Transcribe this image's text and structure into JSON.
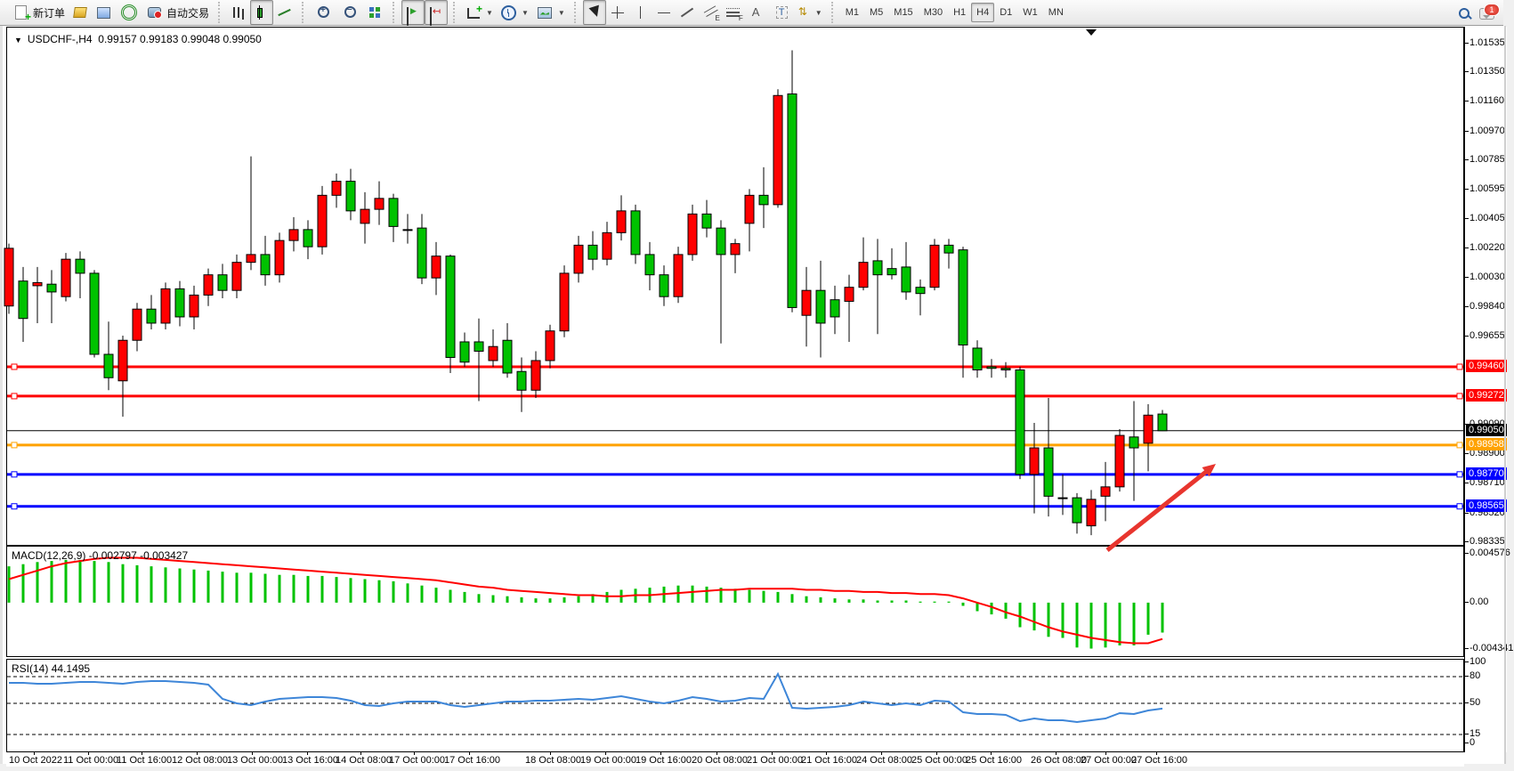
{
  "toolbar": {
    "groups": [
      {
        "name": "trade",
        "buttons": [
          {
            "name": "new-order-button",
            "icon": "doc",
            "label": "新订单",
            "active": false
          },
          {
            "name": "market-watch-button",
            "icon": "cube",
            "label": "",
            "active": false
          },
          {
            "name": "data-window-button",
            "icon": "win",
            "label": "",
            "active": false
          },
          {
            "name": "navigator-button",
            "icon": "sig",
            "label": "",
            "active": false
          },
          {
            "name": "auto-trading-button",
            "icon": "auto",
            "label": "自动交易",
            "active": false
          }
        ]
      },
      {
        "name": "chart-type",
        "buttons": [
          {
            "name": "bar-chart-button",
            "icon": "bars",
            "label": "",
            "active": false
          },
          {
            "name": "candlestick-button",
            "icon": "candle",
            "label": "",
            "active": true
          },
          {
            "name": "line-chart-button",
            "icon": "line",
            "label": "",
            "active": false
          }
        ]
      },
      {
        "name": "zoom",
        "buttons": [
          {
            "name": "zoom-in-button",
            "icon": "zoomin",
            "label": "",
            "active": false
          },
          {
            "name": "zoom-out-button",
            "icon": "zoomout",
            "label": "",
            "active": false
          },
          {
            "name": "tile-windows-button",
            "icon": "tile",
            "label": "",
            "active": false
          }
        ]
      },
      {
        "name": "scroll",
        "buttons": [
          {
            "name": "auto-scroll-button",
            "icon": "ascroll",
            "label": "",
            "active": true
          },
          {
            "name": "chart-shift-button",
            "icon": "ashift",
            "label": "",
            "active": true
          }
        ]
      },
      {
        "name": "objects-main",
        "buttons": [
          {
            "name": "indicators-button",
            "icon": "ind",
            "label": "",
            "active": false,
            "dropdown": true
          },
          {
            "name": "periods-button",
            "icon": "clock",
            "label": "",
            "active": false,
            "dropdown": true
          },
          {
            "name": "templates-button",
            "icon": "tmpl",
            "label": "",
            "active": false,
            "dropdown": true
          }
        ]
      },
      {
        "name": "drawing",
        "buttons": [
          {
            "name": "cursor-button",
            "icon": "cursor",
            "label": "",
            "active": true
          },
          {
            "name": "crosshair-button",
            "icon": "cross",
            "label": "",
            "active": false
          },
          {
            "name": "vertical-line-button",
            "icon": "vline",
            "label": "",
            "active": false
          },
          {
            "name": "horizontal-line-button",
            "icon": "hline",
            "label": "",
            "active": false
          },
          {
            "name": "trendline-button",
            "icon": "trend",
            "label": "",
            "active": false
          },
          {
            "name": "channel-button",
            "icon": "chan",
            "label": "",
            "active": false
          },
          {
            "name": "fibonacci-button",
            "icon": "fibo",
            "label": "",
            "active": false
          },
          {
            "name": "text-button",
            "icon": "text",
            "label": "",
            "active": false
          },
          {
            "name": "text-label-button",
            "icon": "label",
            "label": "",
            "active": false
          },
          {
            "name": "arrows-button",
            "icon": "arrows",
            "label": "",
            "active": false,
            "dropdown": true
          }
        ]
      }
    ],
    "timeframes": [
      {
        "label": "M1",
        "active": false
      },
      {
        "label": "M5",
        "active": false
      },
      {
        "label": "M15",
        "active": false
      },
      {
        "label": "M30",
        "active": false
      },
      {
        "label": "H1",
        "active": false
      },
      {
        "label": "H4",
        "active": true
      },
      {
        "label": "D1",
        "active": false
      },
      {
        "label": "W1",
        "active": false
      },
      {
        "label": "MN",
        "active": false
      }
    ],
    "notification_badge": "1"
  },
  "chart_header": {
    "symbol_period": "USDCHF-,H4",
    "open": "0.99157",
    "high": "0.99183",
    "low": "0.99048",
    "close": "0.99050",
    "collapse_icon": "▼"
  },
  "indicator_labels": {
    "macd_name": "MACD(12,26,9)",
    "macd_value": "-0.002797",
    "macd_signal": "-0.003427",
    "rsi_name": "RSI(14)",
    "rsi_value": "44.1495"
  },
  "colors": {
    "bull": "#ff0000",
    "bear": "#00c200",
    "candle_border": "#000000",
    "macd_hist": "#00c200",
    "macd_signal": "#ff0000",
    "rsi_line": "#3e86d8",
    "level_red": "#ff0000",
    "level_blue": "#0000ff",
    "level_orange": "#ffa200",
    "current_price_line": "#000000",
    "arrow": "#e8352e"
  },
  "chart_data": {
    "type": "candlestick",
    "symbol": "USDCHF-",
    "timeframe": "H4",
    "price_pane": {
      "axis_ticks": [
        "1.01535",
        "1.01350",
        "1.01160",
        "1.00970",
        "1.00785",
        "1.00595",
        "1.00405",
        "1.00220",
        "1.00030",
        "0.99840",
        "0.99655",
        "0.99090",
        "0.98900",
        "0.98710",
        "0.98520",
        "0.98335"
      ],
      "ylim": [
        0.98335,
        1.01535
      ],
      "grid": false
    },
    "candles": [
      [
        0.9985,
        1.0025,
        0.998,
        1.0022
      ],
      [
        1.0001,
        1.001,
        0.9962,
        0.9977
      ],
      [
        0.9998,
        1.001,
        0.9974,
        1.0
      ],
      [
        0.9999,
        1.0008,
        0.9974,
        0.9994
      ],
      [
        0.9991,
        1.0019,
        0.9988,
        1.0015
      ],
      [
        1.0015,
        1.002,
        0.999,
        1.0006
      ],
      [
        1.0006,
        1.0008,
        0.9952,
        0.9954
      ],
      [
        0.9954,
        0.9975,
        0.9931,
        0.9939
      ],
      [
        0.9937,
        0.9966,
        0.9914,
        0.9963
      ],
      [
        0.9963,
        0.9987,
        0.9956,
        0.9983
      ],
      [
        0.9983,
        0.9992,
        0.997,
        0.9974
      ],
      [
        0.9974,
        1.0,
        0.997,
        0.9996
      ],
      [
        0.9996,
        1.0001,
        0.9972,
        0.9978
      ],
      [
        0.9978,
        0.9998,
        0.997,
        0.9992
      ],
      [
        0.9992,
        1.0009,
        0.9985,
        1.0005
      ],
      [
        1.0005,
        1.0012,
        0.999,
        0.9995
      ],
      [
        0.9995,
        1.0018,
        0.999,
        1.0013
      ],
      [
        1.0013,
        1.0081,
        1.0008,
        1.0018
      ],
      [
        1.0018,
        1.003,
        0.9998,
        1.0005
      ],
      [
        1.0005,
        1.0032,
        1.0,
        1.0027
      ],
      [
        1.0027,
        1.0042,
        1.002,
        1.0034
      ],
      [
        1.0034,
        1.004,
        1.0015,
        1.0023
      ],
      [
        1.0023,
        1.0062,
        1.0018,
        1.0056
      ],
      [
        1.0056,
        1.007,
        1.0048,
        1.0065
      ],
      [
        1.0065,
        1.0073,
        1.004,
        1.0046
      ],
      [
        1.0038,
        1.0058,
        1.0025,
        1.0047
      ],
      [
        1.0047,
        1.0065,
        1.0037,
        1.0054
      ],
      [
        1.0054,
        1.0057,
        1.0026,
        1.0036
      ],
      [
        1.0034,
        1.0044,
        1.0025,
        1.0034
      ],
      [
        1.0035,
        1.0044,
        0.9999,
        1.0003
      ],
      [
        1.0003,
        1.0026,
        0.9992,
        1.0017
      ],
      [
        1.0017,
        1.0018,
        0.9942,
        0.9952
      ],
      [
        0.9962,
        0.9968,
        0.9946,
        0.9949
      ],
      [
        0.9962,
        0.9977,
        0.9924,
        0.9956
      ],
      [
        0.995,
        0.997,
        0.9946,
        0.9959
      ],
      [
        0.9963,
        0.9974,
        0.9939,
        0.9942
      ],
      [
        0.9943,
        0.9952,
        0.9917,
        0.9931
      ],
      [
        0.9931,
        0.9956,
        0.9926,
        0.995
      ],
      [
        0.995,
        0.9973,
        0.9945,
        0.9969
      ],
      [
        0.9969,
        1.0011,
        0.9965,
        1.0006
      ],
      [
        1.0006,
        1.003,
        1.0,
        1.0024
      ],
      [
        1.0024,
        1.0033,
        1.0008,
        1.0015
      ],
      [
        1.0015,
        1.0039,
        1.0011,
        1.0032
      ],
      [
        1.0032,
        1.0056,
        1.0027,
        1.0046
      ],
      [
        1.0046,
        1.005,
        1.0012,
        1.0018
      ],
      [
        1.0018,
        1.0026,
        0.9995,
        1.0005
      ],
      [
        1.0005,
        1.0011,
        0.9985,
        0.9991
      ],
      [
        0.9991,
        1.0023,
        0.9987,
        1.0018
      ],
      [
        1.0018,
        1.005,
        1.0014,
        1.0044
      ],
      [
        1.0044,
        1.0053,
        1.0029,
        1.0035
      ],
      [
        1.0035,
        1.004,
        0.9961,
        1.0018
      ],
      [
        1.0018,
        1.0028,
        1.0006,
        1.0025
      ],
      [
        1.0038,
        1.006,
        1.002,
        1.0056
      ],
      [
        1.0056,
        1.0074,
        1.0035,
        1.005
      ],
      [
        1.005,
        1.0124,
        1.0048,
        1.012
      ],
      [
        1.0121,
        1.0149,
        0.9981,
        0.9984
      ],
      [
        0.9979,
        1.001,
        0.9959,
        0.9995
      ],
      [
        0.9995,
        1.0014,
        0.9952,
        0.9974
      ],
      [
        0.9989,
        0.9998,
        0.9967,
        0.9978
      ],
      [
        0.9988,
        1.0005,
        0.9962,
        0.9997
      ],
      [
        0.9997,
        1.0029,
        0.9995,
        1.0013
      ],
      [
        1.0014,
        1.0028,
        0.9967,
        1.0005
      ],
      [
        1.0009,
        1.0022,
        1.0002,
        1.0005
      ],
      [
        1.001,
        1.0026,
        0.9989,
        0.9994
      ],
      [
        0.9997,
        1.0002,
        0.9979,
        0.9993
      ],
      [
        0.9997,
        1.0028,
        0.9995,
        1.0024
      ],
      [
        1.0024,
        1.0028,
        1.0009,
        1.0019
      ],
      [
        1.0021,
        1.0023,
        0.9939,
        0.996
      ],
      [
        0.9958,
        0.9963,
        0.9939,
        0.9944
      ],
      [
        0.9946,
        0.9951,
        0.9939,
        0.9945
      ],
      [
        0.9945,
        0.9949,
        0.9939,
        0.9944
      ],
      [
        0.9944,
        0.9946,
        0.9874,
        0.9877
      ],
      [
        0.9877,
        0.991,
        0.9852,
        0.9894
      ],
      [
        0.9894,
        0.9926,
        0.985,
        0.9863
      ],
      [
        0.9862,
        0.9877,
        0.9851,
        0.9862
      ],
      [
        0.9862,
        0.9865,
        0.9839,
        0.9846
      ],
      [
        0.9844,
        0.9867,
        0.9838,
        0.9861
      ],
      [
        0.9863,
        0.9885,
        0.9847,
        0.9869
      ],
      [
        0.9869,
        0.9906,
        0.9866,
        0.9902
      ],
      [
        0.9901,
        0.9924,
        0.986,
        0.9894
      ],
      [
        0.9897,
        0.9922,
        0.9879,
        0.9915
      ],
      [
        0.99157,
        0.99183,
        0.99048,
        0.9905
      ]
    ],
    "hlines": [
      {
        "price": 0.9946,
        "label": "0.99460",
        "color": "#ff0000",
        "width": 3,
        "handles": true
      },
      {
        "price": 0.99272,
        "label": "0.99272",
        "color": "#ff0000",
        "width": 3,
        "handles": true
      },
      {
        "price": 0.9905,
        "label": "0.99050",
        "color": "#000000",
        "width": 1,
        "handles": false
      },
      {
        "price": 0.98958,
        "label": "0.98958",
        "color": "#ffa200",
        "width": 3,
        "handles": true
      },
      {
        "price": 0.9877,
        "label": "0.98770",
        "color": "#0000ff",
        "width": 3,
        "handles": true
      },
      {
        "price": 0.98565,
        "label": "0.98565",
        "color": "#0000ff",
        "width": 3,
        "handles": true
      }
    ],
    "arrow_annotation": {
      "x1": 1241,
      "y1": 618,
      "x2": 1363,
      "y2": 521
    },
    "macd": {
      "name": "MACD(12,26,9)",
      "value": -0.002797,
      "signal_value": -0.003427,
      "axis_ticks": [
        {
          "v": 0.004576,
          "label": "0.004576"
        },
        {
          "v": 0.0,
          "label": "0.00"
        },
        {
          "v": -0.004341,
          "label": "-0.004341"
        }
      ],
      "hist": [
        0.0034,
        0.0036,
        0.0038,
        0.0039,
        0.004,
        0.004,
        0.0039,
        0.0038,
        0.0036,
        0.0035,
        0.0034,
        0.0033,
        0.0032,
        0.0031,
        0.003,
        0.0029,
        0.0028,
        0.0028,
        0.0027,
        0.0026,
        0.0026,
        0.0025,
        0.0025,
        0.0024,
        0.0023,
        0.0022,
        0.0021,
        0.002,
        0.0018,
        0.0016,
        0.0014,
        0.0012,
        0.001,
        0.0008,
        0.0007,
        0.0006,
        0.0005,
        0.0004,
        0.0004,
        0.0005,
        0.0006,
        0.0008,
        0.001,
        0.0012,
        0.0013,
        0.0014,
        0.0015,
        0.0016,
        0.0016,
        0.0015,
        0.0014,
        0.0013,
        0.0012,
        0.0011,
        0.001,
        0.0008,
        0.0006,
        0.0005,
        0.0004,
        0.0003,
        0.0003,
        0.0002,
        0.0002,
        0.0002,
        0.0001,
        0.0001,
        0.0001,
        -0.0003,
        -0.0008,
        -0.0011,
        -0.0015,
        -0.0023,
        -0.0026,
        -0.0032,
        -0.0033,
        -0.0042,
        -0.0043,
        -0.0042,
        -0.004,
        -0.004,
        -0.003,
        -0.0028
      ],
      "signal": [
        0.0022,
        0.0026,
        0.003,
        0.0034,
        0.0037,
        0.0039,
        0.0041,
        0.0042,
        0.0042,
        0.0042,
        0.0041,
        0.004,
        0.0039,
        0.0038,
        0.0037,
        0.0036,
        0.0035,
        0.0034,
        0.0033,
        0.0032,
        0.0031,
        0.003,
        0.0029,
        0.0028,
        0.0027,
        0.0026,
        0.0025,
        0.0024,
        0.0023,
        0.0022,
        0.0021,
        0.0019,
        0.0017,
        0.0015,
        0.0014,
        0.0012,
        0.0011,
        0.001,
        0.0009,
        0.0008,
        0.0007,
        0.0007,
        0.0006,
        0.0006,
        0.0007,
        0.0007,
        0.0008,
        0.0009,
        0.001,
        0.0011,
        0.0012,
        0.0012,
        0.0013,
        0.0013,
        0.0013,
        0.0013,
        0.0012,
        0.0012,
        0.0011,
        0.0011,
        0.001,
        0.001,
        0.0009,
        0.0009,
        0.0008,
        0.0008,
        0.0007,
        0.0004,
        0.0,
        -0.0004,
        -0.0009,
        -0.0013,
        -0.0018,
        -0.0023,
        -0.0027,
        -0.003,
        -0.0033,
        -0.0035,
        -0.0037,
        -0.0038,
        -0.0038,
        -0.0034
      ]
    },
    "rsi": {
      "name": "RSI(14)",
      "value": 44.1495,
      "axis_ticks": [
        {
          "v": 100,
          "label": "100"
        },
        {
          "v": 80,
          "label": "80"
        },
        {
          "v": 50,
          "label": "50"
        },
        {
          "v": 15,
          "label": "15"
        },
        {
          "v": 0,
          "label": "0"
        }
      ],
      "dashed_levels": [
        80,
        50,
        15
      ],
      "values": [
        73,
        73,
        72,
        72,
        73,
        74,
        74,
        73,
        72,
        74,
        75,
        75,
        74,
        73,
        71,
        55,
        50,
        48,
        52,
        55,
        56,
        57,
        57,
        56,
        53,
        48,
        47,
        50,
        52,
        52,
        52,
        48,
        46,
        48,
        50,
        52,
        52,
        53,
        53,
        54,
        55,
        54,
        56,
        58,
        55,
        52,
        50,
        53,
        57,
        55,
        52,
        53,
        56,
        55,
        83,
        45,
        44,
        45,
        46,
        48,
        52,
        50,
        48,
        50,
        48,
        53,
        52,
        40,
        38,
        38,
        37,
        30,
        33,
        31,
        31,
        29,
        31,
        33,
        39,
        38,
        42,
        44.15
      ]
    },
    "x_axis": {
      "labels": [
        "10 Oct 2022",
        "11 Oct 00:00",
        "11 Oct 16:00",
        "12 Oct 08:00",
        "13 Oct 00:00",
        "13 Oct 16:00",
        "14 Oct 08:00",
        "17 Oct 00:00",
        "17 Oct 16:00",
        "18 Oct 08:00",
        "19 Oct 00:00",
        "19 Oct 16:00",
        "20 Oct 08:00",
        "21 Oct 00:00",
        "21 Oct 16:00",
        "24 Oct 08:00",
        "25 Oct 00:00",
        "25 Oct 16:00",
        "26 Oct 08:00",
        "27 Oct 00:00",
        "27 Oct 16:00"
      ],
      "lefts": [
        3,
        64,
        124,
        186,
        248,
        310,
        370,
        430,
        492,
        583,
        645,
        707,
        770,
        832,
        893,
        955,
        1017,
        1078,
        1151,
        1207,
        1264
      ]
    }
  }
}
